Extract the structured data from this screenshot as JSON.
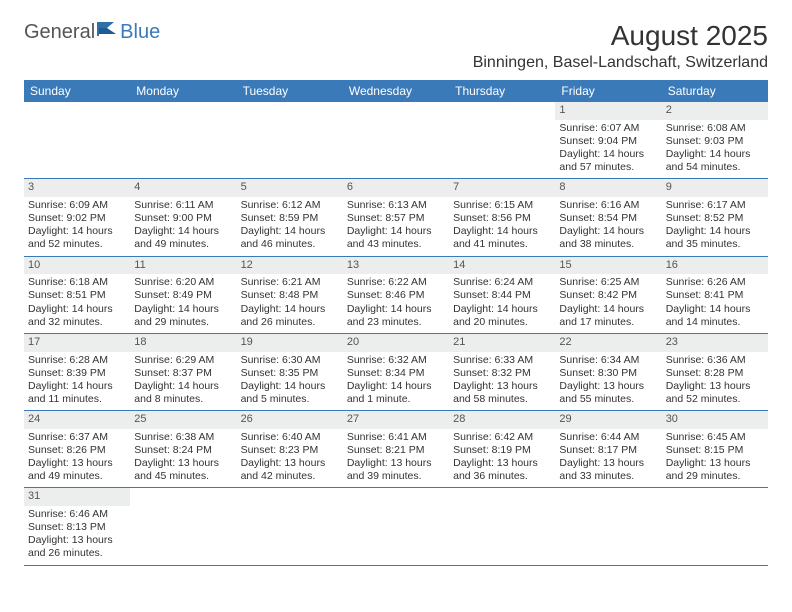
{
  "brand": {
    "general": "General",
    "blue": "Blue"
  },
  "title": "August 2025",
  "location": "Binningen, Basel-Landschaft, Switzerland",
  "colors": {
    "header_bg": "#3a7ab8",
    "header_fg": "#ffffff",
    "daynum_bg": "#eceded",
    "row_border": "#3a7ab8",
    "text": "#333333"
  },
  "weekdays": [
    "Sunday",
    "Monday",
    "Tuesday",
    "Wednesday",
    "Thursday",
    "Friday",
    "Saturday"
  ],
  "weeks": [
    [
      {
        "n": "",
        "sr": "",
        "ss": "",
        "dl": ""
      },
      {
        "n": "",
        "sr": "",
        "ss": "",
        "dl": ""
      },
      {
        "n": "",
        "sr": "",
        "ss": "",
        "dl": ""
      },
      {
        "n": "",
        "sr": "",
        "ss": "",
        "dl": ""
      },
      {
        "n": "",
        "sr": "",
        "ss": "",
        "dl": ""
      },
      {
        "n": "1",
        "sr": "Sunrise: 6:07 AM",
        "ss": "Sunset: 9:04 PM",
        "dl": "Daylight: 14 hours and 57 minutes."
      },
      {
        "n": "2",
        "sr": "Sunrise: 6:08 AM",
        "ss": "Sunset: 9:03 PM",
        "dl": "Daylight: 14 hours and 54 minutes."
      }
    ],
    [
      {
        "n": "3",
        "sr": "Sunrise: 6:09 AM",
        "ss": "Sunset: 9:02 PM",
        "dl": "Daylight: 14 hours and 52 minutes."
      },
      {
        "n": "4",
        "sr": "Sunrise: 6:11 AM",
        "ss": "Sunset: 9:00 PM",
        "dl": "Daylight: 14 hours and 49 minutes."
      },
      {
        "n": "5",
        "sr": "Sunrise: 6:12 AM",
        "ss": "Sunset: 8:59 PM",
        "dl": "Daylight: 14 hours and 46 minutes."
      },
      {
        "n": "6",
        "sr": "Sunrise: 6:13 AM",
        "ss": "Sunset: 8:57 PM",
        "dl": "Daylight: 14 hours and 43 minutes."
      },
      {
        "n": "7",
        "sr": "Sunrise: 6:15 AM",
        "ss": "Sunset: 8:56 PM",
        "dl": "Daylight: 14 hours and 41 minutes."
      },
      {
        "n": "8",
        "sr": "Sunrise: 6:16 AM",
        "ss": "Sunset: 8:54 PM",
        "dl": "Daylight: 14 hours and 38 minutes."
      },
      {
        "n": "9",
        "sr": "Sunrise: 6:17 AM",
        "ss": "Sunset: 8:52 PM",
        "dl": "Daylight: 14 hours and 35 minutes."
      }
    ],
    [
      {
        "n": "10",
        "sr": "Sunrise: 6:18 AM",
        "ss": "Sunset: 8:51 PM",
        "dl": "Daylight: 14 hours and 32 minutes."
      },
      {
        "n": "11",
        "sr": "Sunrise: 6:20 AM",
        "ss": "Sunset: 8:49 PM",
        "dl": "Daylight: 14 hours and 29 minutes."
      },
      {
        "n": "12",
        "sr": "Sunrise: 6:21 AM",
        "ss": "Sunset: 8:48 PM",
        "dl": "Daylight: 14 hours and 26 minutes."
      },
      {
        "n": "13",
        "sr": "Sunrise: 6:22 AM",
        "ss": "Sunset: 8:46 PM",
        "dl": "Daylight: 14 hours and 23 minutes."
      },
      {
        "n": "14",
        "sr": "Sunrise: 6:24 AM",
        "ss": "Sunset: 8:44 PM",
        "dl": "Daylight: 14 hours and 20 minutes."
      },
      {
        "n": "15",
        "sr": "Sunrise: 6:25 AM",
        "ss": "Sunset: 8:42 PM",
        "dl": "Daylight: 14 hours and 17 minutes."
      },
      {
        "n": "16",
        "sr": "Sunrise: 6:26 AM",
        "ss": "Sunset: 8:41 PM",
        "dl": "Daylight: 14 hours and 14 minutes."
      }
    ],
    [
      {
        "n": "17",
        "sr": "Sunrise: 6:28 AM",
        "ss": "Sunset: 8:39 PM",
        "dl": "Daylight: 14 hours and 11 minutes."
      },
      {
        "n": "18",
        "sr": "Sunrise: 6:29 AM",
        "ss": "Sunset: 8:37 PM",
        "dl": "Daylight: 14 hours and 8 minutes."
      },
      {
        "n": "19",
        "sr": "Sunrise: 6:30 AM",
        "ss": "Sunset: 8:35 PM",
        "dl": "Daylight: 14 hours and 5 minutes."
      },
      {
        "n": "20",
        "sr": "Sunrise: 6:32 AM",
        "ss": "Sunset: 8:34 PM",
        "dl": "Daylight: 14 hours and 1 minute."
      },
      {
        "n": "21",
        "sr": "Sunrise: 6:33 AM",
        "ss": "Sunset: 8:32 PM",
        "dl": "Daylight: 13 hours and 58 minutes."
      },
      {
        "n": "22",
        "sr": "Sunrise: 6:34 AM",
        "ss": "Sunset: 8:30 PM",
        "dl": "Daylight: 13 hours and 55 minutes."
      },
      {
        "n": "23",
        "sr": "Sunrise: 6:36 AM",
        "ss": "Sunset: 8:28 PM",
        "dl": "Daylight: 13 hours and 52 minutes."
      }
    ],
    [
      {
        "n": "24",
        "sr": "Sunrise: 6:37 AM",
        "ss": "Sunset: 8:26 PM",
        "dl": "Daylight: 13 hours and 49 minutes."
      },
      {
        "n": "25",
        "sr": "Sunrise: 6:38 AM",
        "ss": "Sunset: 8:24 PM",
        "dl": "Daylight: 13 hours and 45 minutes."
      },
      {
        "n": "26",
        "sr": "Sunrise: 6:40 AM",
        "ss": "Sunset: 8:23 PM",
        "dl": "Daylight: 13 hours and 42 minutes."
      },
      {
        "n": "27",
        "sr": "Sunrise: 6:41 AM",
        "ss": "Sunset: 8:21 PM",
        "dl": "Daylight: 13 hours and 39 minutes."
      },
      {
        "n": "28",
        "sr": "Sunrise: 6:42 AM",
        "ss": "Sunset: 8:19 PM",
        "dl": "Daylight: 13 hours and 36 minutes."
      },
      {
        "n": "29",
        "sr": "Sunrise: 6:44 AM",
        "ss": "Sunset: 8:17 PM",
        "dl": "Daylight: 13 hours and 33 minutes."
      },
      {
        "n": "30",
        "sr": "Sunrise: 6:45 AM",
        "ss": "Sunset: 8:15 PM",
        "dl": "Daylight: 13 hours and 29 minutes."
      }
    ],
    [
      {
        "n": "31",
        "sr": "Sunrise: 6:46 AM",
        "ss": "Sunset: 8:13 PM",
        "dl": "Daylight: 13 hours and 26 minutes."
      },
      {
        "n": "",
        "sr": "",
        "ss": "",
        "dl": ""
      },
      {
        "n": "",
        "sr": "",
        "ss": "",
        "dl": ""
      },
      {
        "n": "",
        "sr": "",
        "ss": "",
        "dl": ""
      },
      {
        "n": "",
        "sr": "",
        "ss": "",
        "dl": ""
      },
      {
        "n": "",
        "sr": "",
        "ss": "",
        "dl": ""
      },
      {
        "n": "",
        "sr": "",
        "ss": "",
        "dl": ""
      }
    ]
  ]
}
